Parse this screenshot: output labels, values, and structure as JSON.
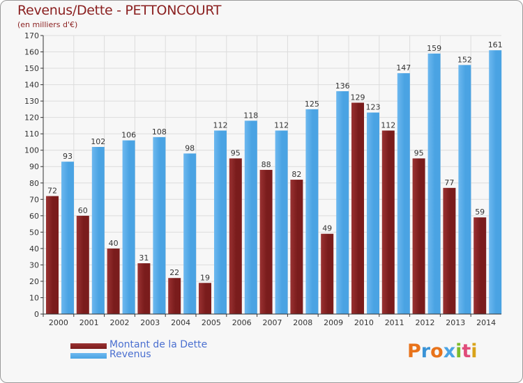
{
  "colors": {
    "dette": "#7a1c1c",
    "dette_top": "#9a3232",
    "revenus": "#4aa3e3",
    "revenus_top": "#6db8ef",
    "grid": "#dcdcdc",
    "axis": "#333333",
    "text": "#333333",
    "legend_text": "#4a6fd0",
    "title": "#8a1f1f"
  },
  "chart_data": {
    "type": "bar",
    "title": "Revenus/Dette - PETTONCOURT",
    "subtitle": "(en milliers d'€)",
    "xlabel": "",
    "ylabel": "",
    "ylim": [
      0,
      170
    ],
    "ytick_step": 10,
    "grid": true,
    "legend_position": "bottom-left",
    "categories": [
      "2000",
      "2001",
      "2002",
      "2003",
      "2004",
      "2005",
      "2006",
      "2007",
      "2008",
      "2009",
      "2010",
      "2011",
      "2012",
      "2013",
      "2014"
    ],
    "series": [
      {
        "name": "Montant de la Dette",
        "values": [
          72,
          60,
          40,
          31,
          22,
          19,
          95,
          88,
          82,
          49,
          129,
          112,
          95,
          77,
          59
        ]
      },
      {
        "name": "Revenus",
        "values": [
          93,
          102,
          106,
          108,
          98,
          112,
          118,
          112,
          125,
          136,
          123,
          147,
          159,
          152,
          161
        ]
      }
    ]
  },
  "logo": {
    "letters": [
      "P",
      "r",
      "o",
      "x",
      "i",
      "t",
      "i"
    ],
    "colors": [
      "#e8731b",
      "#3a93d6",
      "#e8731b",
      "#4aa3e3",
      "#7dbb2a",
      "#e04c7a",
      "#d9a31a"
    ]
  }
}
